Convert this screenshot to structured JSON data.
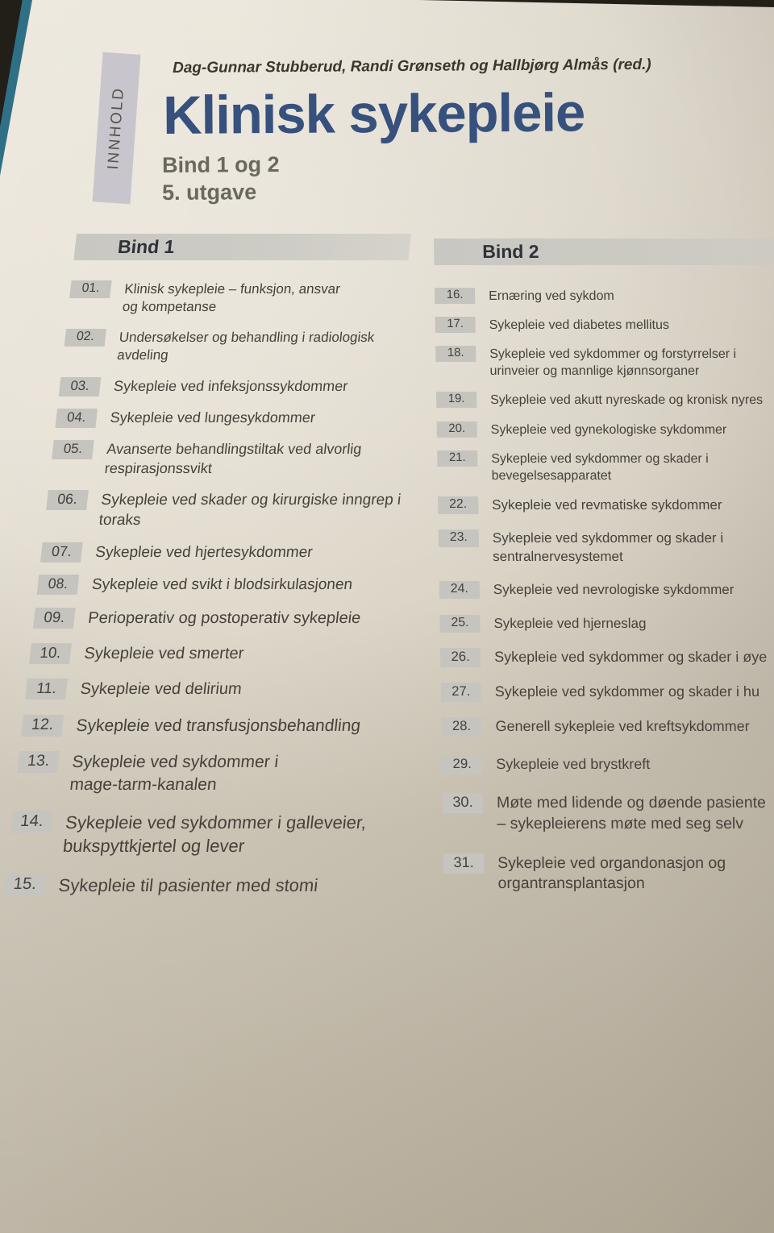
{
  "photo": {
    "tab_label": "INNHOLD",
    "authors": "Dag-Gunnar Stubberud, Randi Grønseth og Hallbjørg Almås (red.)",
    "title": "Klinisk sykepleie",
    "subtitle": "Bind 1 og 2",
    "edition": "5. utgave"
  },
  "colors": {
    "backdrop": "#221f19",
    "teal-edge": "#2f7086",
    "paper-top": "#ece7dc",
    "paper-bottom": "#c6bdab",
    "title": "#36517e",
    "heading-gray": "#6b6860",
    "band": "#c8c7c1",
    "band-text": "#2e3138",
    "badge": "#c6c4bf",
    "text": "#46423b",
    "tab": "#c8c6cc",
    "tab-text": "#56524c",
    "author-text": "#3b372f"
  },
  "bind1": {
    "heading": "Bind 1",
    "chapters": [
      {
        "num": "01.",
        "title": "Klinisk sykepleie – funksjon, ansvar\nog kompetanse"
      },
      {
        "num": "02.",
        "title": "Undersøkelser og behandling i radiologisk\navdeling"
      },
      {
        "num": "03.",
        "title": "Sykepleie ved infeksjonssykdommer"
      },
      {
        "num": "04.",
        "title": "Sykepleie ved lungesykdommer"
      },
      {
        "num": "05.",
        "title": "Avanserte behandlingstiltak ved alvorlig\nrespirasjonssvikt"
      },
      {
        "num": "06.",
        "title": "Sykepleie ved skader og kirurgiske inngrep i\ntoraks"
      },
      {
        "num": "07.",
        "title": "Sykepleie ved hjertesykdommer"
      },
      {
        "num": "08.",
        "title": "Sykepleie ved svikt i blodsirkulasjonen"
      },
      {
        "num": "09.",
        "title": "Perioperativ og postoperativ sykepleie"
      },
      {
        "num": "10.",
        "title": "Sykepleie ved smerter"
      },
      {
        "num": "11.",
        "title": "Sykepleie ved delirium"
      },
      {
        "num": "12.",
        "title": "Sykepleie ved transfusjonsbehandling"
      },
      {
        "num": "13.",
        "title": "Sykepleie ved sykdommer i\nmage-tarm-kanalen"
      },
      {
        "num": "14.",
        "title": "Sykepleie ved sykdommer i galleveier,\nbukspyttkjertel og lever"
      },
      {
        "num": "15.",
        "title": "Sykepleie til pasienter med stomi"
      }
    ]
  },
  "bind2": {
    "heading": "Bind 2",
    "chapters": [
      {
        "num": "16.",
        "title": "Ernæring ved sykdom"
      },
      {
        "num": "17.",
        "title": "Sykepleie ved diabetes mellitus"
      },
      {
        "num": "18.",
        "title": "Sykepleie ved sykdommer og forstyrrelser i\nurinveier og mannlige kjønnsorganer"
      },
      {
        "num": "19.",
        "title": "Sykepleie ved akutt nyreskade og kronisk nyres"
      },
      {
        "num": "20.",
        "title": "Sykepleie ved gynekologiske sykdommer"
      },
      {
        "num": "21.",
        "title": "Sykepleie ved sykdommer og skader i\nbevegelsesapparatet"
      },
      {
        "num": "22.",
        "title": "Sykepleie ved revmatiske sykdommer"
      },
      {
        "num": "23.",
        "title": "Sykepleie ved sykdommer og skader i\nsentralnervesystemet"
      },
      {
        "num": "24.",
        "title": "Sykepleie ved nevrologiske sykdommer"
      },
      {
        "num": "25.",
        "title": "Sykepleie ved hjerneslag"
      },
      {
        "num": "26.",
        "title": "Sykepleie ved sykdommer og skader i øye"
      },
      {
        "num": "27.",
        "title": "Sykepleie ved sykdommer og skader i hu"
      },
      {
        "num": "28.",
        "title": "Generell sykepleie ved kreftsykdommer"
      },
      {
        "num": "29.",
        "title": "Sykepleie ved brystkreft"
      },
      {
        "num": "30.",
        "title": "Møte med lidende og døende pasiente\n– sykepleierens møte med seg selv"
      },
      {
        "num": "31.",
        "title": "Sykepleie ved organdonasjon og\norgantransplantasjon"
      }
    ]
  }
}
